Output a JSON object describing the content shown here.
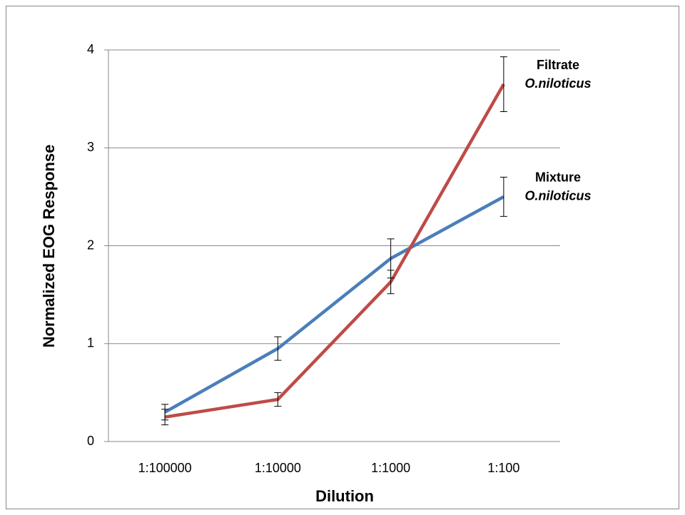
{
  "chart_data": {
    "type": "line",
    "x_label": "Dilution",
    "y_label": "Normalized EOG Response",
    "categories": [
      "1:100000",
      "1:10000",
      "1:1000",
      "1:100"
    ],
    "series": [
      {
        "name": "Mixture",
        "species": "O.niloticus",
        "color": "#4a7ebb",
        "values": [
          0.3,
          0.95,
          1.87,
          2.5
        ],
        "errors": [
          0.08,
          0.12,
          0.2,
          0.2
        ]
      },
      {
        "name": "Filtrate",
        "species": "O.niloticus",
        "color": "#be4b48",
        "values": [
          0.25,
          0.43,
          1.63,
          3.65
        ],
        "errors": [
          0.08,
          0.07,
          0.12,
          0.28
        ]
      }
    ],
    "ylim": [
      0,
      4
    ],
    "yticks": [
      0,
      1,
      2,
      3,
      4
    ],
    "grid": true
  }
}
